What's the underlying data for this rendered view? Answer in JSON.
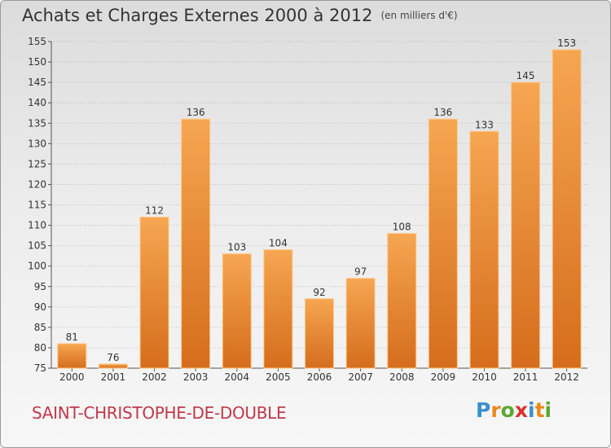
{
  "title": "Achats et Charges Externes 2000 à 2012",
  "unit_note": "(en milliers d'€)",
  "commune": "SAINT-CHRISTOPHE-DE-DOUBLE",
  "logo": {
    "letters": [
      "P",
      "r",
      "o",
      "x",
      "i",
      "t",
      "i"
    ],
    "colors": [
      "#3a8fd0",
      "#e8891e",
      "#5aa832",
      "#d8342c",
      "#3a8fd0",
      "#e8891e",
      "#5aa832"
    ]
  },
  "colors": {
    "bar_top": "#f6a651",
    "bar_bottom": "#d56d1c",
    "bar_edge": "#ffc88a",
    "title": "#333333",
    "commune": "#c0394a"
  },
  "chart_data": {
    "type": "bar",
    "categories": [
      "2000",
      "2001",
      "2002",
      "2003",
      "2004",
      "2005",
      "2006",
      "2007",
      "2008",
      "2009",
      "2010",
      "2011",
      "2012"
    ],
    "values": [
      81,
      76,
      112,
      136,
      103,
      104,
      92,
      97,
      108,
      136,
      133,
      145,
      153
    ],
    "ylim": [
      75,
      155
    ],
    "yticks": [
      75,
      80,
      85,
      90,
      95,
      100,
      105,
      110,
      115,
      120,
      125,
      130,
      135,
      140,
      145,
      150,
      155
    ],
    "grid": true
  }
}
